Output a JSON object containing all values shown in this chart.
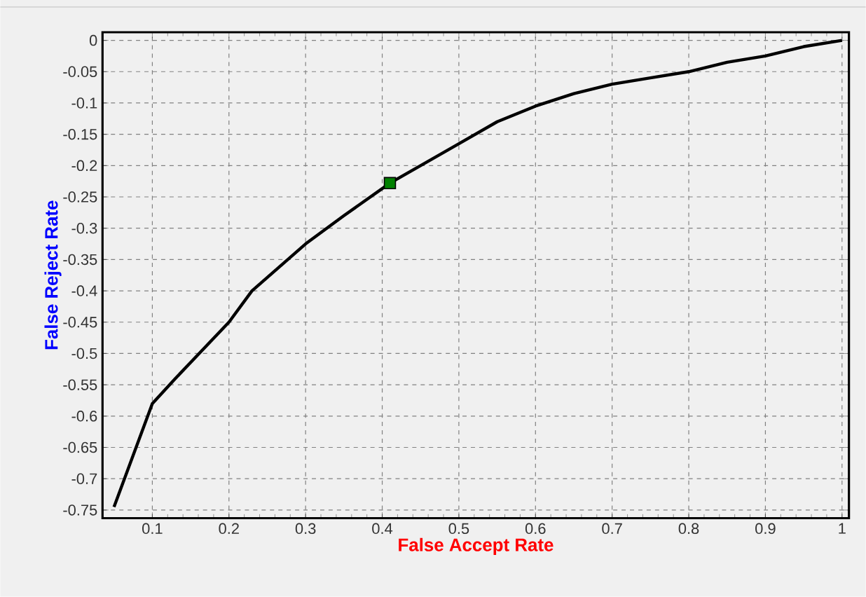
{
  "chart_data": {
    "type": "line",
    "xlabel": "False Accept Rate",
    "ylabel": "False Reject Rate",
    "xlim": [
      0.035,
      1.009
    ],
    "ylim": [
      -0.763,
      0.013
    ],
    "xticks": [
      0.1,
      0.2,
      0.3,
      0.4,
      0.5,
      0.6,
      0.7,
      0.8,
      0.9,
      1
    ],
    "yticks": [
      0,
      -0.05,
      -0.1,
      -0.15,
      -0.2,
      -0.25,
      -0.3,
      -0.35,
      -0.4,
      -0.45,
      -0.5,
      -0.55,
      -0.6,
      -0.65,
      -0.7,
      -0.75
    ],
    "grid": true,
    "series": [
      {
        "color": "#000000",
        "marker": "none",
        "x": [
          0.05,
          0.1,
          0.13,
          0.2,
          0.23,
          0.3,
          0.35,
          0.41,
          0.45,
          0.5,
          0.55,
          0.6,
          0.65,
          0.7,
          0.75,
          0.8,
          0.85,
          0.9,
          0.95,
          1.0
        ],
        "values": [
          -0.745,
          -0.58,
          -0.54,
          -0.45,
          -0.4,
          -0.325,
          -0.28,
          -0.228,
          -0.2,
          -0.165,
          -0.13,
          -0.105,
          -0.085,
          -0.07,
          -0.06,
          -0.05,
          -0.035,
          -0.025,
          -0.01,
          0
        ]
      },
      {
        "type": "scatter",
        "color": "#008000",
        "marker": "square",
        "x": [
          0.41
        ],
        "values": [
          -0.228
        ]
      }
    ]
  }
}
